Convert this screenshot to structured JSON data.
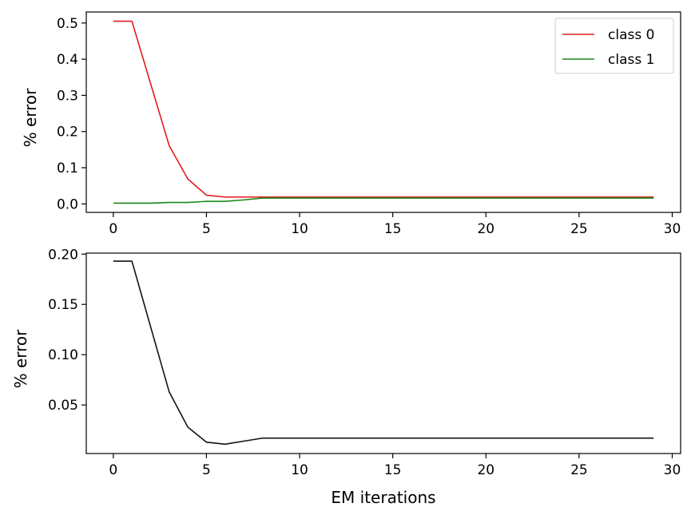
{
  "chart_data": [
    {
      "type": "line",
      "title": "",
      "xlabel": "",
      "ylabel": "% error",
      "xlim": [
        -1.45,
        30.45
      ],
      "ylim": [
        -0.0235,
        0.5305
      ],
      "xticks": [
        0,
        5,
        10,
        15,
        20,
        25,
        30
      ],
      "xtick_labels": [
        "0",
        "5",
        "10",
        "15",
        "20",
        "25",
        "30"
      ],
      "yticks": [
        0.0,
        0.1,
        0.2,
        0.3,
        0.4,
        0.5
      ],
      "ytick_labels": [
        "0.0",
        "0.1",
        "0.2",
        "0.3",
        "0.4",
        "0.5"
      ],
      "grid": false,
      "legend": {
        "position": "top-right",
        "entries": [
          "class 0",
          "class 1"
        ]
      },
      "x": [
        0,
        1,
        2,
        3,
        4,
        5,
        6,
        7,
        8,
        9,
        10,
        11,
        12,
        13,
        14,
        15,
        16,
        17,
        18,
        19,
        20,
        21,
        22,
        23,
        24,
        25,
        26,
        27,
        28,
        29
      ],
      "series": [
        {
          "name": "class 0",
          "color": "#e41a1c",
          "values": [
            0.505,
            0.505,
            0.333,
            0.161,
            0.069,
            0.024,
            0.019,
            0.019,
            0.019,
            0.019,
            0.019,
            0.019,
            0.019,
            0.019,
            0.019,
            0.019,
            0.019,
            0.019,
            0.019,
            0.019,
            0.019,
            0.019,
            0.019,
            0.019,
            0.019,
            0.019,
            0.019,
            0.019,
            0.019,
            0.019
          ]
        },
        {
          "name": "class 1",
          "color": "#1b8a1b",
          "values": [
            0.002,
            0.002,
            0.002,
            0.004,
            0.004,
            0.007,
            0.007,
            0.011,
            0.016,
            0.016,
            0.016,
            0.016,
            0.016,
            0.016,
            0.016,
            0.016,
            0.016,
            0.016,
            0.016,
            0.016,
            0.016,
            0.016,
            0.016,
            0.016,
            0.016,
            0.016,
            0.016,
            0.016,
            0.016,
            0.016
          ]
        }
      ]
    },
    {
      "type": "line",
      "title": "",
      "xlabel": "EM iterations",
      "ylabel": "% error",
      "xlim": [
        -1.45,
        30.45
      ],
      "ylim": [
        0.0017,
        0.201
      ],
      "xticks": [
        0,
        5,
        10,
        15,
        20,
        25,
        30
      ],
      "xtick_labels": [
        "0",
        "5",
        "10",
        "15",
        "20",
        "25",
        "30"
      ],
      "yticks": [
        0.05,
        0.1,
        0.15,
        0.2
      ],
      "ytick_labels": [
        "0.05",
        "0.10",
        "0.15",
        "0.20"
      ],
      "grid": false,
      "x": [
        0,
        1,
        2,
        3,
        4,
        5,
        6,
        7,
        8,
        9,
        10,
        11,
        12,
        13,
        14,
        15,
        16,
        17,
        18,
        19,
        20,
        21,
        22,
        23,
        24,
        25,
        26,
        27,
        28,
        29
      ],
      "series": [
        {
          "color": "#111111",
          "values": [
            0.193,
            0.193,
            0.128,
            0.063,
            0.028,
            0.013,
            0.011,
            0.014,
            0.017,
            0.017,
            0.017,
            0.017,
            0.017,
            0.017,
            0.017,
            0.017,
            0.017,
            0.017,
            0.017,
            0.017,
            0.017,
            0.017,
            0.017,
            0.017,
            0.017,
            0.017,
            0.017,
            0.017,
            0.017,
            0.017
          ]
        }
      ]
    }
  ]
}
